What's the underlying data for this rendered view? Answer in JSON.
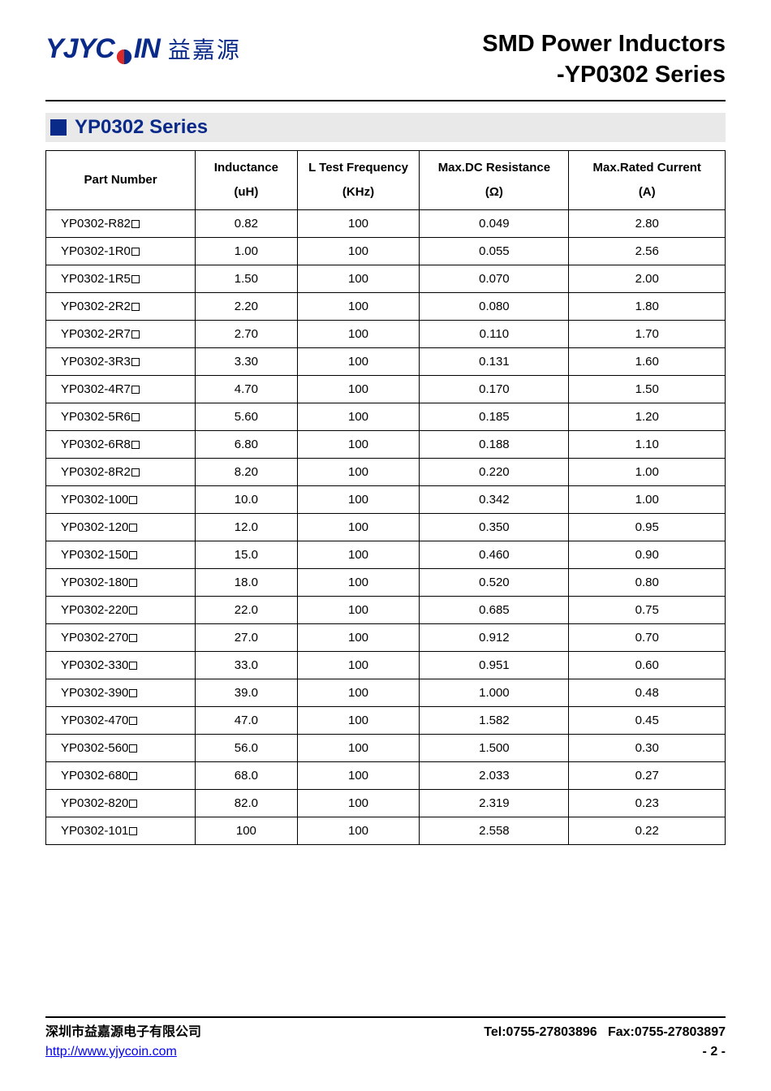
{
  "logo": {
    "wordmark_left": "YJYC",
    "wordmark_right": "IN",
    "chinese": "益嘉源",
    "brand_color": "#0a2a8a",
    "coin_icon_color": "#d92a2a"
  },
  "header": {
    "title_line1": "SMD Power Inductors",
    "title_line2": "-YP0302 Series"
  },
  "section": {
    "title": "YP0302 Series",
    "bar_bg": "#e9e9e9",
    "square_color": "#0a2a8a",
    "title_color": "#0a2a8a"
  },
  "table": {
    "columns": [
      {
        "label": "Part Number",
        "unit": ""
      },
      {
        "label": "Inductance",
        "unit": "(uH)"
      },
      {
        "label": "L Test Frequency",
        "unit": "(KHz)"
      },
      {
        "label": "Max.DC Resistance",
        "unit": "(Ω)"
      },
      {
        "label": "Max.Rated Current",
        "unit": "(A)"
      }
    ],
    "rows": [
      {
        "pn": "YP0302-R82",
        "ind": "0.82",
        "freq": "100",
        "dcr": "0.049",
        "cur": "2.80"
      },
      {
        "pn": "YP0302-1R0",
        "ind": "1.00",
        "freq": "100",
        "dcr": "0.055",
        "cur": "2.56"
      },
      {
        "pn": "YP0302-1R5",
        "ind": "1.50",
        "freq": "100",
        "dcr": "0.070",
        "cur": "2.00"
      },
      {
        "pn": "YP0302-2R2",
        "ind": "2.20",
        "freq": "100",
        "dcr": "0.080",
        "cur": "1.80"
      },
      {
        "pn": "YP0302-2R7",
        "ind": "2.70",
        "freq": "100",
        "dcr": "0.110",
        "cur": "1.70"
      },
      {
        "pn": "YP0302-3R3",
        "ind": "3.30",
        "freq": "100",
        "dcr": "0.131",
        "cur": "1.60"
      },
      {
        "pn": "YP0302-4R7",
        "ind": "4.70",
        "freq": "100",
        "dcr": "0.170",
        "cur": "1.50"
      },
      {
        "pn": "YP0302-5R6",
        "ind": "5.60",
        "freq": "100",
        "dcr": "0.185",
        "cur": "1.20"
      },
      {
        "pn": "YP0302-6R8",
        "ind": "6.80",
        "freq": "100",
        "dcr": "0.188",
        "cur": "1.10"
      },
      {
        "pn": "YP0302-8R2",
        "ind": "8.20",
        "freq": "100",
        "dcr": "0.220",
        "cur": "1.00"
      },
      {
        "pn": "YP0302-100",
        "ind": "10.0",
        "freq": "100",
        "dcr": "0.342",
        "cur": "1.00"
      },
      {
        "pn": "YP0302-120",
        "ind": "12.0",
        "freq": "100",
        "dcr": "0.350",
        "cur": "0.95"
      },
      {
        "pn": "YP0302-150",
        "ind": "15.0",
        "freq": "100",
        "dcr": "0.460",
        "cur": "0.90"
      },
      {
        "pn": "YP0302-180",
        "ind": "18.0",
        "freq": "100",
        "dcr": "0.520",
        "cur": "0.80"
      },
      {
        "pn": "YP0302-220",
        "ind": "22.0",
        "freq": "100",
        "dcr": "0.685",
        "cur": "0.75"
      },
      {
        "pn": "YP0302-270",
        "ind": "27.0",
        "freq": "100",
        "dcr": "0.912",
        "cur": "0.70"
      },
      {
        "pn": "YP0302-330",
        "ind": "33.0",
        "freq": "100",
        "dcr": "0.951",
        "cur": "0.60"
      },
      {
        "pn": "YP0302-390",
        "ind": "39.0",
        "freq": "100",
        "dcr": "1.000",
        "cur": "0.48"
      },
      {
        "pn": "YP0302-470",
        "ind": "47.0",
        "freq": "100",
        "dcr": "1.582",
        "cur": "0.45"
      },
      {
        "pn": "YP0302-560",
        "ind": "56.0",
        "freq": "100",
        "dcr": "1.500",
        "cur": "0.30"
      },
      {
        "pn": "YP0302-680",
        "ind": "68.0",
        "freq": "100",
        "dcr": "2.033",
        "cur": "0.27"
      },
      {
        "pn": "YP0302-820",
        "ind": "82.0",
        "freq": "100",
        "dcr": "2.319",
        "cur": "0.23"
      },
      {
        "pn": "YP0302-101",
        "ind": "100",
        "freq": "100",
        "dcr": "2.558",
        "cur": "0.22"
      }
    ]
  },
  "footer": {
    "company_cn": "深圳市益嘉源电子有限公司",
    "url_text": "http://www.yjycoin.com",
    "tel_label": "Tel:0755-27803896",
    "fax_label": "Fax:0755-27803897",
    "page": "- 2 -"
  }
}
